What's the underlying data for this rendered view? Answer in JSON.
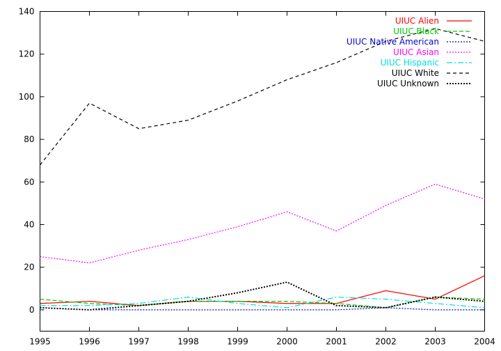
{
  "chart_data": {
    "type": "line",
    "title": "",
    "xlabel": "",
    "ylabel": "",
    "x": [
      1995,
      1996,
      1997,
      1998,
      1999,
      2000,
      2001,
      2002,
      2003,
      2004
    ],
    "xlim": [
      1995,
      2004
    ],
    "ylim": [
      -10,
      140
    ],
    "x_ticks": [
      "1995",
      "1996",
      "1997",
      "1998",
      "1999",
      "2000",
      "2001",
      "2002",
      "2003",
      "2004"
    ],
    "y_ticks": [
      "0",
      "20",
      "40",
      "60",
      "80",
      "100",
      "120",
      "140"
    ],
    "grid": false,
    "legend_position": "top-right",
    "series": [
      {
        "name": "UIUC Alien",
        "color": "#ff0000",
        "dash": "solid",
        "values": [
          3,
          4,
          2,
          4,
          4,
          3,
          3,
          9,
          5,
          16
        ]
      },
      {
        "name": "UIUC Black",
        "color": "#00cc00",
        "dash": "dashed",
        "values": [
          5,
          3,
          2,
          4,
          4,
          4,
          3,
          1,
          6,
          5
        ]
      },
      {
        "name": "UIUC Native American",
        "color": "#0000cc",
        "dash": "dotted",
        "values": [
          1,
          0,
          0,
          0,
          0,
          0,
          0,
          1,
          0,
          0
        ]
      },
      {
        "name": "UIUC Asian",
        "color": "#ff00ff",
        "dash": "dotted",
        "values": [
          25,
          22,
          28,
          33,
          39,
          46,
          37,
          49,
          59,
          52
        ]
      },
      {
        "name": "UIUC Hispanic",
        "color": "#00dddd",
        "dash": "dashdot",
        "values": [
          2,
          2,
          3,
          6,
          3,
          1,
          6,
          5,
          3,
          1
        ]
      },
      {
        "name": "UIUC White",
        "color": "#000000",
        "dash": "dashed-fine",
        "values": [
          68,
          97,
          85,
          89,
          98,
          108,
          116,
          126,
          132,
          126
        ]
      },
      {
        "name": "UIUC Unknown",
        "color": "#000000",
        "dash": "dotted-heavy",
        "values": [
          1,
          0,
          2,
          4,
          8,
          13,
          2,
          1,
          6,
          4
        ]
      }
    ]
  }
}
